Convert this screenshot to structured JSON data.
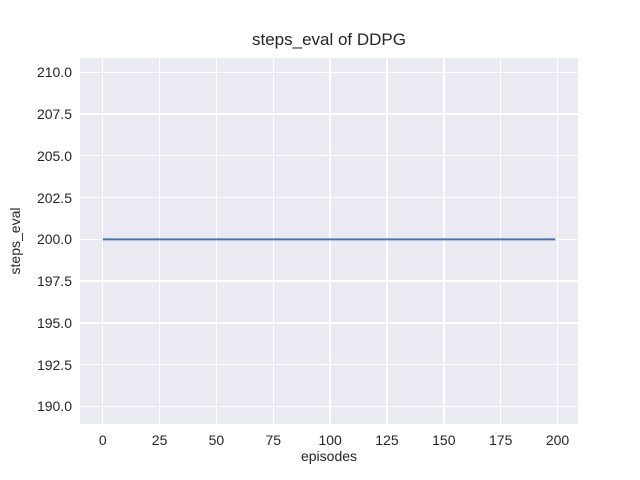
{
  "figure": {
    "title": "steps_eval of DDPG",
    "xlabel": "episodes",
    "ylabel": "steps_eval"
  },
  "chart_data": {
    "type": "line",
    "title": "steps_eval of DDPG",
    "xlabel": "episodes",
    "ylabel": "steps_eval",
    "series": [
      {
        "name": "DDPG",
        "x": [
          0,
          199
        ],
        "y": [
          200.0,
          200.0
        ],
        "color": "#4c72b0",
        "note": "constant evaluation steps value of 200 across all episodes"
      }
    ],
    "xlim": [
      -10,
      209
    ],
    "ylim": [
      188.95,
      210.85
    ],
    "xticks": [
      0,
      25,
      50,
      75,
      100,
      125,
      150,
      175,
      200
    ],
    "xtick_labels": [
      "0",
      "25",
      "50",
      "75",
      "100",
      "125",
      "150",
      "175",
      "200"
    ],
    "yticks": [
      190.0,
      192.5,
      195.0,
      197.5,
      200.0,
      202.5,
      205.0,
      207.5,
      210.0
    ],
    "ytick_labels": [
      "190.0",
      "192.5",
      "195.0",
      "197.5",
      "200.0",
      "202.5",
      "205.0",
      "207.5",
      "210.0"
    ],
    "grid": true,
    "legend": false,
    "style": "seaborn-darkgrid",
    "colors": {
      "plot_background": "#eaeaf2",
      "figure_background": "#ffffff",
      "gridline": "#ffffff",
      "text": "#262626"
    }
  }
}
